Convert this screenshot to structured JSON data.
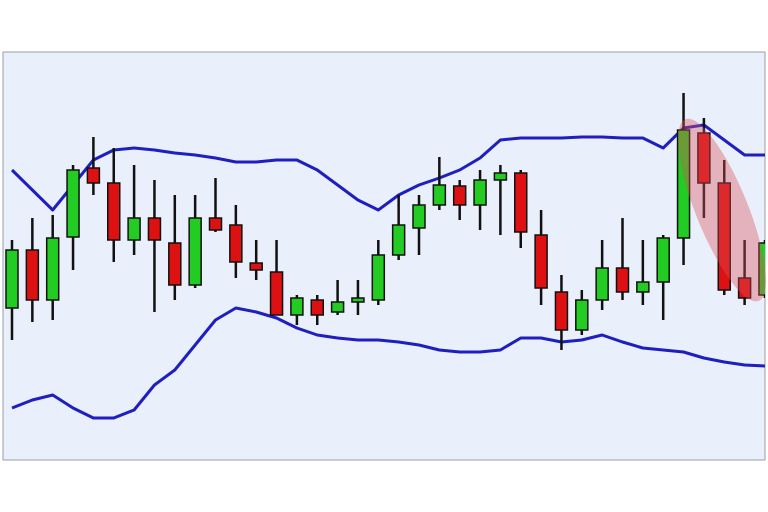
{
  "chart_data": {
    "type": "candlestick",
    "open": [
      152,
      210,
      160,
      223,
      292,
      277,
      220,
      242,
      217,
      175,
      242,
      235,
      197,
      188,
      145,
      160,
      148,
      158,
      160,
      205,
      232,
      255,
      274,
      255,
      280,
      287,
      225,
      168,
      130,
      160,
      192,
      168,
      178,
      222,
      327,
      277,
      182,
      165
    ],
    "high": [
      220,
      242,
      245,
      295,
      323,
      312,
      295,
      280,
      265,
      265,
      282,
      255,
      220,
      220,
      165,
      165,
      180,
      180,
      220,
      265,
      265,
      303,
      280,
      290,
      295,
      290,
      250,
      185,
      170,
      220,
      242,
      220,
      225,
      367,
      342,
      300,
      220,
      220
    ],
    "low": [
      120,
      138,
      140,
      190,
      265,
      198,
      205,
      148,
      160,
      172,
      228,
      182,
      180,
      145,
      135,
      135,
      145,
      145,
      155,
      200,
      205,
      250,
      240,
      230,
      225,
      212,
      155,
      110,
      125,
      150,
      160,
      155,
      140,
      195,
      242,
      165,
      155,
      162
    ],
    "close": [
      210,
      160,
      222,
      290,
      277,
      220,
      242,
      220,
      175,
      242,
      230,
      198,
      190,
      145,
      162,
      145,
      158,
      162,
      205,
      235,
      255,
      275,
      255,
      280,
      287,
      228,
      172,
      130,
      160,
      192,
      168,
      178,
      222,
      330,
      277,
      170,
      162,
      217
    ],
    "up_color": "#22cc22",
    "down_color": "#dd1111",
    "bands": [
      {
        "color": "#1f1fbf",
        "values": [
          290,
          270,
          250,
          275,
          300,
          310,
          312,
          310,
          307,
          305,
          302,
          298,
          298,
          300,
          300,
          290,
          275,
          260,
          250,
          265,
          275,
          282,
          290,
          302,
          320,
          322,
          322,
          322,
          323,
          323,
          322,
          322,
          312,
          332,
          335,
          320,
          305,
          305
        ]
      },
      {
        "color": "#1f1fbf",
        "values": [
          52,
          60,
          65,
          52,
          42,
          42,
          50,
          75,
          90,
          115,
          140,
          152,
          148,
          142,
          132,
          125,
          122,
          120,
          120,
          118,
          115,
          110,
          108,
          108,
          110,
          122,
          122,
          118,
          120,
          125,
          118,
          112,
          110,
          108,
          102,
          98,
          95,
          94
        ]
      }
    ],
    "ylim": [
      0,
      408
    ]
  }
}
